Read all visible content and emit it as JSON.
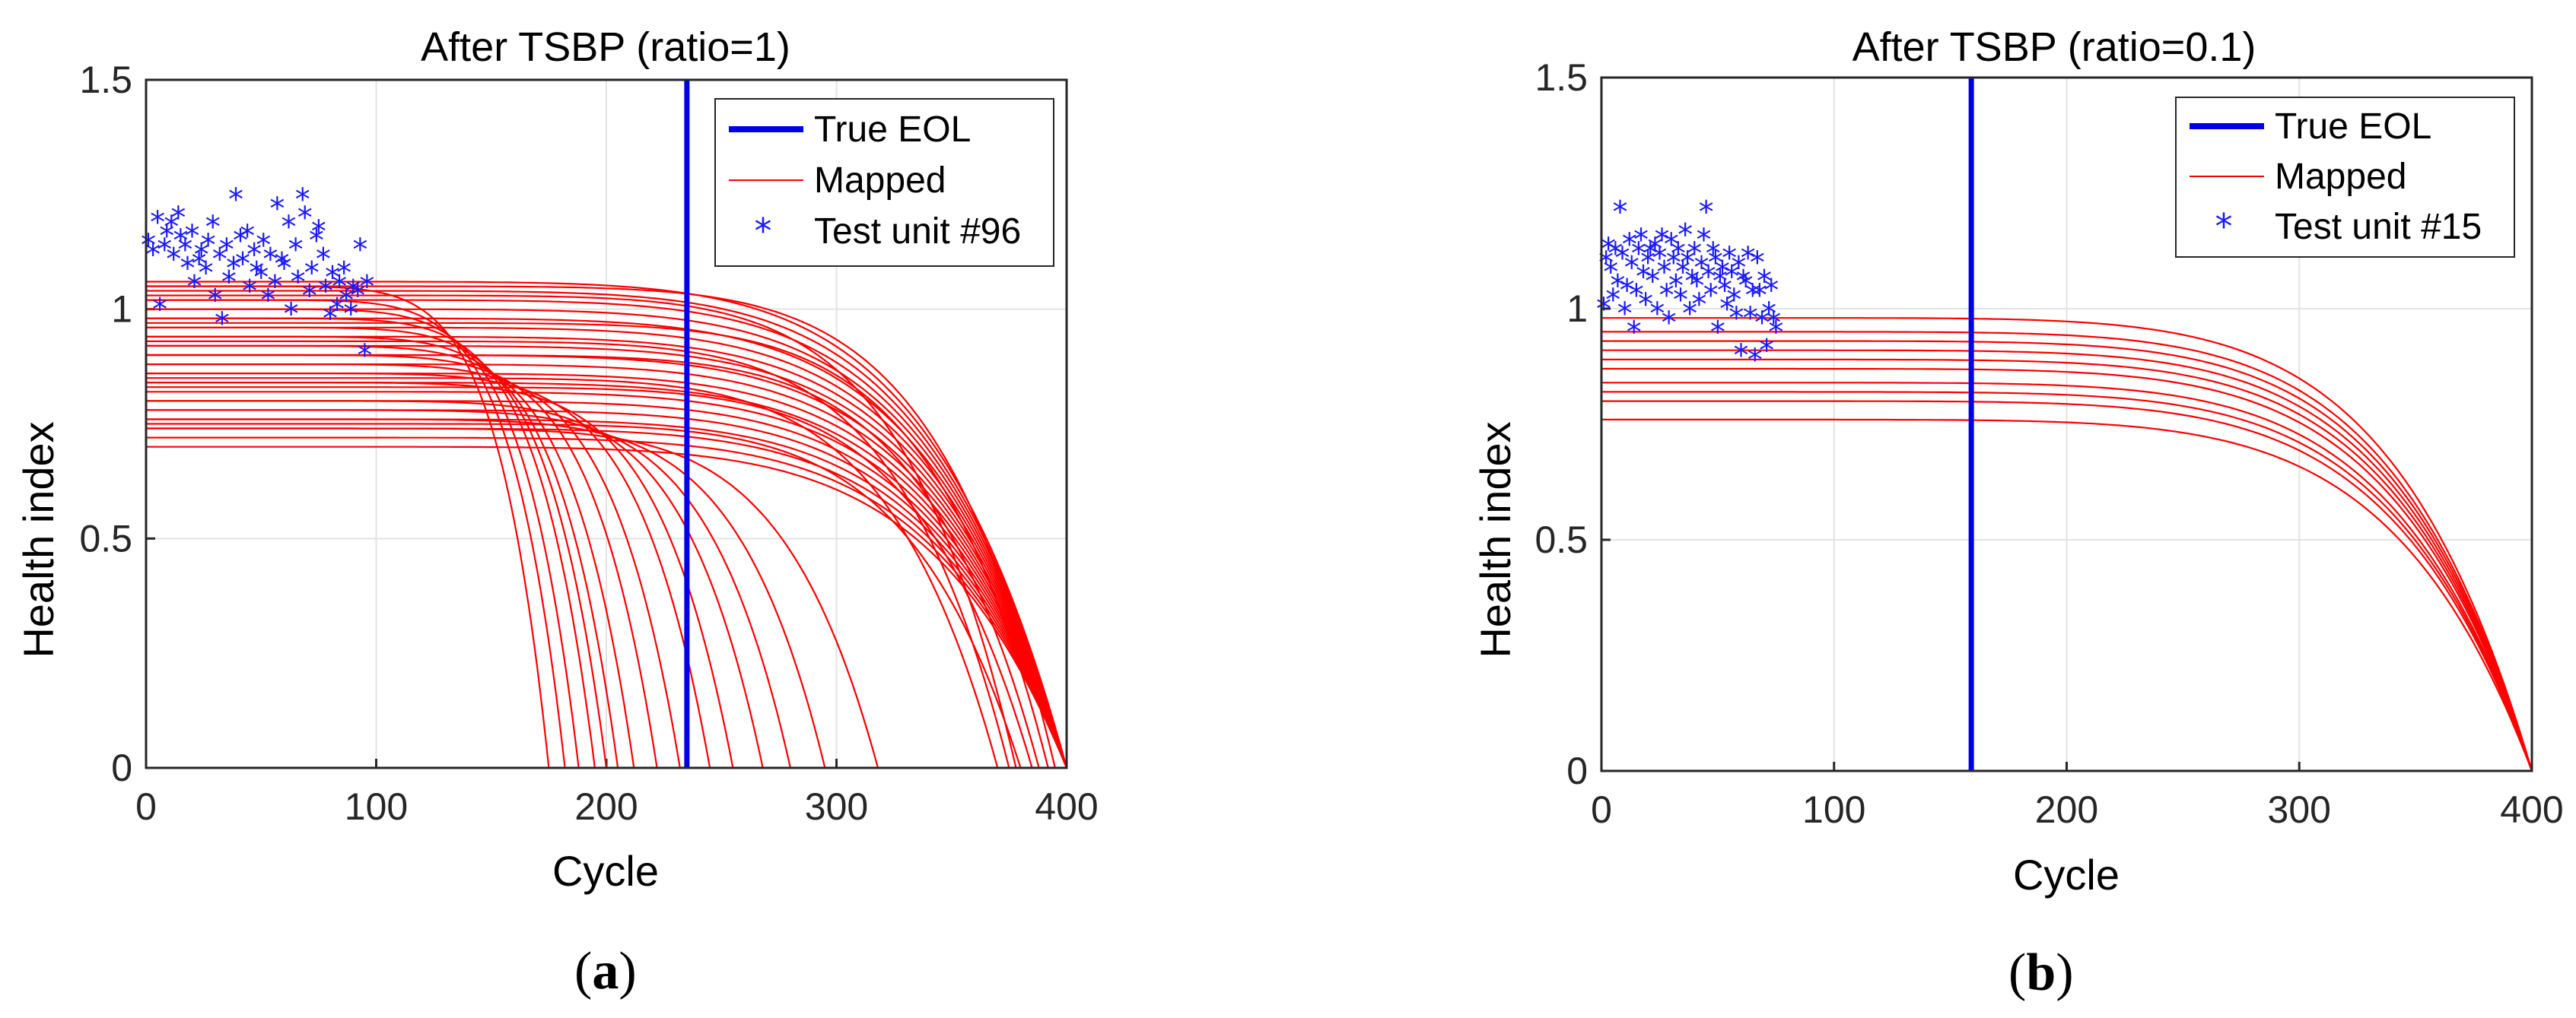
{
  "chart_data": [
    {
      "type": "line",
      "title": "After TSBP (ratio=1)",
      "xlabel": "Cycle",
      "ylabel": "Health index",
      "xlim": [
        0,
        400
      ],
      "ylim": [
        0,
        1.5
      ],
      "xticks": [
        "0",
        "100",
        "200",
        "300",
        "400"
      ],
      "yticks": [
        "0",
        "0.5",
        "1",
        "1.5"
      ],
      "grid": true,
      "legend_position": "top-right",
      "legend": [
        "True EOL",
        "Mapped",
        "Test unit #96"
      ],
      "true_eol": 235,
      "eol_color": "#0000e6",
      "mapped_color": "#ff0000",
      "test_color": "#1a1aff",
      "mapped_curves": [
        {
          "start": 1.06,
          "end_cycle": 400
        },
        {
          "start": 1.04,
          "end_cycle": 400
        },
        {
          "start": 1.02,
          "end_cycle": 400
        },
        {
          "start": 1.0,
          "end_cycle": 400
        },
        {
          "start": 0.98,
          "end_cycle": 400
        },
        {
          "start": 0.96,
          "end_cycle": 400
        },
        {
          "start": 0.94,
          "end_cycle": 400
        },
        {
          "start": 0.92,
          "end_cycle": 400
        },
        {
          "start": 0.9,
          "end_cycle": 400
        },
        {
          "start": 0.88,
          "end_cycle": 400
        },
        {
          "start": 0.86,
          "end_cycle": 400
        },
        {
          "start": 0.84,
          "end_cycle": 400
        },
        {
          "start": 0.82,
          "end_cycle": 400
        },
        {
          "start": 0.8,
          "end_cycle": 400
        },
        {
          "start": 0.78,
          "end_cycle": 400
        },
        {
          "start": 0.76,
          "end_cycle": 400
        },
        {
          "start": 0.74,
          "end_cycle": 400
        },
        {
          "start": 0.72,
          "end_cycle": 400
        },
        {
          "start": 0.7,
          "end_cycle": 400
        },
        {
          "start": 1.05,
          "end_cycle": 395
        },
        {
          "start": 0.97,
          "end_cycle": 392
        },
        {
          "start": 0.9,
          "end_cycle": 388
        },
        {
          "start": 0.83,
          "end_cycle": 385
        },
        {
          "start": 0.75,
          "end_cycle": 380
        },
        {
          "start": 1.03,
          "end_cycle": 378
        },
        {
          "start": 0.93,
          "end_cycle": 375
        },
        {
          "start": 0.85,
          "end_cycle": 370
        },
        {
          "start": 1.05,
          "end_cycle": 175
        },
        {
          "start": 1.02,
          "end_cycle": 182
        },
        {
          "start": 1.0,
          "end_cycle": 188
        },
        {
          "start": 0.98,
          "end_cycle": 195
        },
        {
          "start": 0.96,
          "end_cycle": 200
        },
        {
          "start": 0.94,
          "end_cycle": 205
        },
        {
          "start": 0.92,
          "end_cycle": 212
        },
        {
          "start": 0.9,
          "end_cycle": 222
        },
        {
          "start": 0.88,
          "end_cycle": 232
        },
        {
          "start": 0.86,
          "end_cycle": 245
        },
        {
          "start": 0.84,
          "end_cycle": 255
        },
        {
          "start": 0.8,
          "end_cycle": 268
        },
        {
          "start": 0.78,
          "end_cycle": 280
        },
        {
          "start": 0.76,
          "end_cycle": 295
        },
        {
          "start": 0.74,
          "end_cycle": 318
        }
      ],
      "test_points": {
        "x": [
          1,
          3,
          5,
          6,
          8,
          9,
          11,
          12,
          14,
          15,
          17,
          18,
          20,
          21,
          23,
          24,
          26,
          27,
          29,
          30,
          32,
          33,
          35,
          36,
          38,
          39,
          41,
          42,
          44,
          45,
          47,
          48,
          50,
          51,
          53,
          54,
          56,
          57,
          59,
          60,
          62,
          63,
          65,
          66,
          68,
          69,
          71,
          72,
          74,
          75,
          77,
          78,
          80,
          81,
          83,
          84,
          86,
          87,
          89,
          90,
          92,
          93,
          95,
          96
        ],
        "y": [
          1.14,
          1.12,
          1.19,
          1.0,
          1.13,
          1.16,
          1.18,
          1.11,
          1.2,
          1.15,
          1.13,
          1.09,
          1.16,
          1.05,
          1.1,
          1.12,
          1.08,
          1.14,
          1.18,
          1.02,
          1.11,
          0.97,
          1.13,
          1.06,
          1.09,
          1.24,
          1.15,
          1.1,
          1.16,
          1.04,
          1.12,
          1.08,
          1.07,
          1.14,
          1.02,
          1.11,
          1.05,
          1.22,
          1.1,
          1.09,
          1.18,
          0.99,
          1.13,
          1.06,
          1.24,
          1.2,
          1.03,
          1.08,
          1.15,
          1.17,
          1.11,
          1.04,
          0.98,
          1.07,
          1.0,
          1.05,
          1.08,
          1.02,
          0.99,
          1.04,
          1.03,
          1.13,
          0.9,
          1.05
        ]
      }
    },
    {
      "type": "line",
      "title": "After TSBP (ratio=0.1)",
      "xlabel": "Cycle",
      "ylabel": "Health index",
      "xlim": [
        0,
        400
      ],
      "ylim": [
        0,
        1.5
      ],
      "xticks": [
        "0",
        "100",
        "200",
        "300",
        "400"
      ],
      "yticks": [
        "0",
        "0.5",
        "1",
        "1.5"
      ],
      "grid": true,
      "legend_position": "top-right",
      "legend": [
        "True EOL",
        "Mapped",
        "Test unit #15"
      ],
      "true_eol": 159,
      "eol_color": "#0000e6",
      "mapped_color": "#ff0000",
      "test_color": "#1a1aff",
      "mapped_curves": [
        {
          "start": 0.98,
          "end_cycle": 400
        },
        {
          "start": 0.95,
          "end_cycle": 400
        },
        {
          "start": 0.93,
          "end_cycle": 400
        },
        {
          "start": 0.91,
          "end_cycle": 400
        },
        {
          "start": 0.89,
          "end_cycle": 400
        },
        {
          "start": 0.87,
          "end_cycle": 400
        },
        {
          "start": 0.84,
          "end_cycle": 400
        },
        {
          "start": 0.82,
          "end_cycle": 400
        },
        {
          "start": 0.8,
          "end_cycle": 400
        },
        {
          "start": 0.76,
          "end_cycle": 400
        }
      ],
      "test_points": {
        "x": [
          1,
          2,
          3,
          4,
          5,
          6,
          7,
          8,
          9,
          10,
          11,
          12,
          13,
          14,
          15,
          16,
          17,
          18,
          19,
          20,
          21,
          22,
          23,
          24,
          25,
          26,
          27,
          28,
          29,
          30,
          31,
          32,
          33,
          34,
          35,
          36,
          37,
          38,
          39,
          40,
          41,
          42,
          43,
          44,
          45,
          46,
          47,
          48,
          49,
          50,
          51,
          52,
          53,
          54,
          55,
          56,
          57,
          58,
          59,
          60,
          61,
          62,
          63,
          64,
          65,
          66,
          67,
          68,
          69,
          70,
          71,
          72,
          73,
          74,
          75
        ],
        "y": [
          1.0,
          1.1,
          1.13,
          1.08,
          1.02,
          1.12,
          1.05,
          1.21,
          1.11,
          0.99,
          1.04,
          1.14,
          1.09,
          0.95,
          1.03,
          1.12,
          1.15,
          1.07,
          1.01,
          1.1,
          1.12,
          1.06,
          1.13,
          0.99,
          1.11,
          1.15,
          1.08,
          1.03,
          0.97,
          1.14,
          1.1,
          1.05,
          1.12,
          1.02,
          1.08,
          1.16,
          1.1,
          0.99,
          1.06,
          1.12,
          1.05,
          1.01,
          1.09,
          1.15,
          1.21,
          1.07,
          1.03,
          1.12,
          1.1,
          0.95,
          1.06,
          1.08,
          1.04,
          1.0,
          1.11,
          1.07,
          1.02,
          0.98,
          1.09,
          0.9,
          1.06,
          1.05,
          1.11,
          0.98,
          1.03,
          0.89,
          1.1,
          1.03,
          0.97,
          1.06,
          0.91,
          0.99,
          1.04,
          0.97,
          0.95
        ]
      }
    }
  ],
  "captions": [
    "a",
    "b"
  ]
}
